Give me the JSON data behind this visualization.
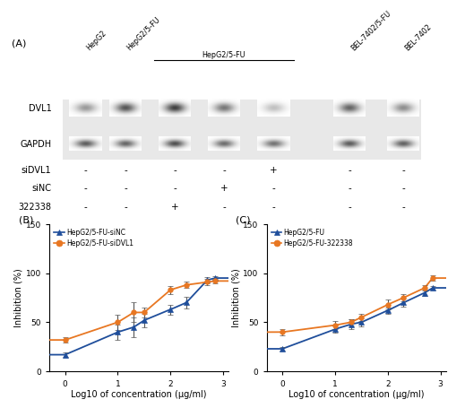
{
  "panel_A_label": "(A)",
  "panel_B_label": "(B)",
  "panel_C_label": "(C)",
  "col_labels_outer": [
    "HepG2",
    "HepG2/5-FU",
    "",
    "",
    "",
    "BEL-7402/5-FU",
    "BEL-7402"
  ],
  "col_labels_bracket": [
    "",
    "",
    "",
    "",
    ""
  ],
  "bracket_label": "HepG2/5-FU",
  "dvl1_intensities": [
    0.45,
    0.75,
    0.85,
    0.6,
    0.28,
    0.68,
    0.5
  ],
  "gapdh_intensities": [
    0.72,
    0.68,
    0.78,
    0.65,
    0.62,
    0.72,
    0.7
  ],
  "plus_minus_siDVL1": [
    "-",
    "-",
    "-",
    "-",
    "+",
    "-",
    "-"
  ],
  "plus_minus_siNC": [
    "-",
    "-",
    "-",
    "+",
    "-",
    "-",
    "-"
  ],
  "plus_minus_322338": [
    "-",
    "-",
    "+",
    "-",
    "-",
    "-",
    "-"
  ],
  "blue_color": "#1F4E9B",
  "orange_color": "#E87722",
  "B_x": [
    0.0,
    1.0,
    1.3,
    1.5,
    2.0,
    2.3,
    2.7,
    2.85
  ],
  "B_siNC_y": [
    17,
    40,
    45,
    52,
    63,
    70,
    93,
    95
  ],
  "B_siNC_err": [
    2,
    8,
    10,
    7,
    5,
    6,
    3,
    2
  ],
  "B_siDVL1_y": [
    32,
    50,
    60,
    60,
    83,
    88,
    91,
    92
  ],
  "B_siDVL1_err": [
    3,
    8,
    10,
    5,
    4,
    3,
    3,
    2
  ],
  "C_x": [
    0.0,
    1.0,
    1.3,
    1.5,
    2.0,
    2.3,
    2.7,
    2.85
  ],
  "C_HepG2FU_y": [
    23,
    43,
    48,
    50,
    62,
    70,
    80,
    85
  ],
  "C_HepG2FU_err": [
    2,
    4,
    5,
    4,
    3,
    4,
    3,
    2
  ],
  "C_322338_y": [
    40,
    47,
    50,
    55,
    68,
    75,
    85,
    95
  ],
  "C_322338_err": [
    3,
    4,
    3,
    4,
    5,
    4,
    3,
    3
  ],
  "xlabel": "Log10 of concentration (μg/ml)",
  "ylabel": "Inhibition (%)",
  "ylim": [
    0,
    150
  ],
  "yticks": [
    0,
    50,
    100,
    150
  ],
  "xlim": [
    -0.3,
    3.1
  ],
  "xticks": [
    0,
    1,
    2,
    3
  ]
}
